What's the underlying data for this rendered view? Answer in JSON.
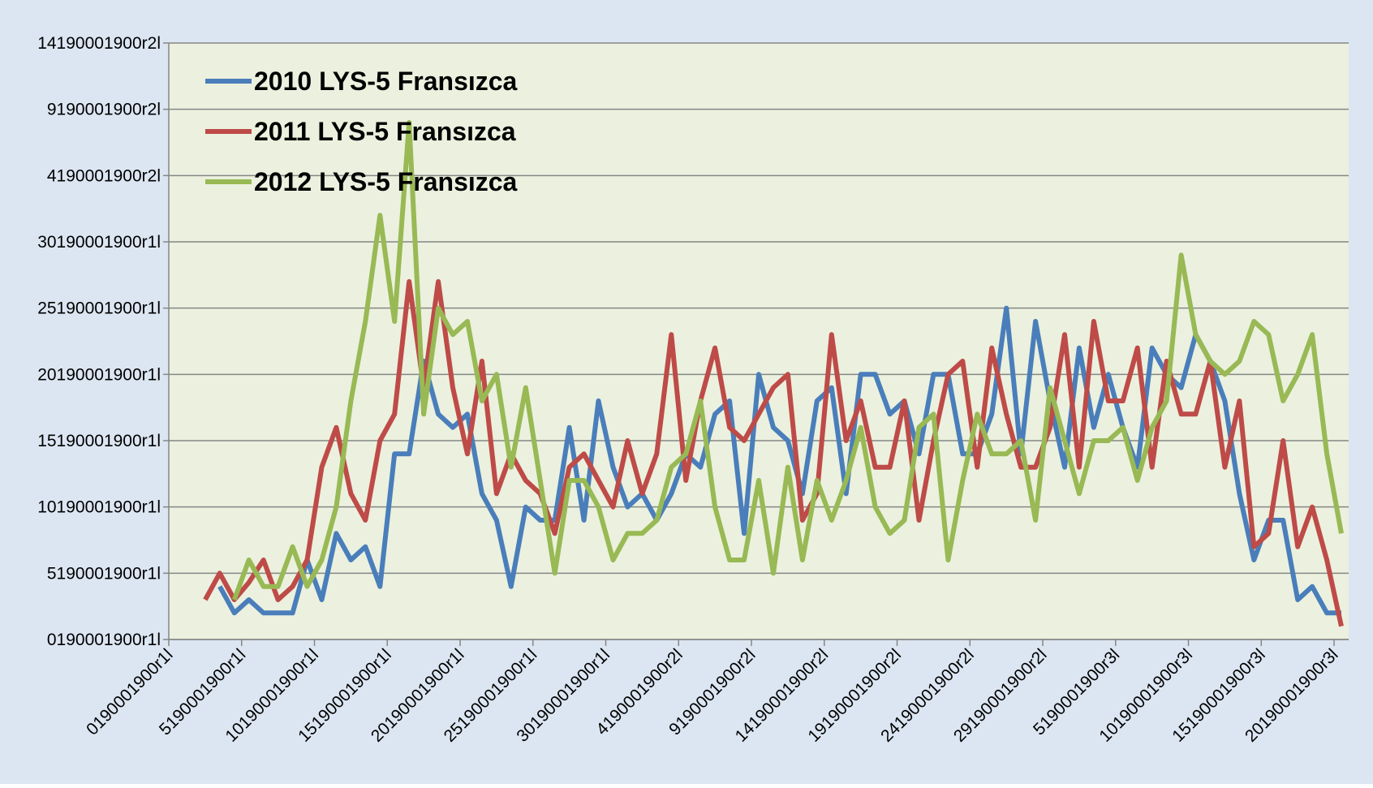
{
  "chart_data": {
    "type": "line",
    "x": [
      2.5,
      3.5,
      4.5,
      5.5,
      6.5,
      7.5,
      8.5,
      9.5,
      10.5,
      11.5,
      12.5,
      13.5,
      14.5,
      15.5,
      16.5,
      17.5,
      18.5,
      19.5,
      20.5,
      21.5,
      22.5,
      23.5,
      24.5,
      25.5,
      26.5,
      27.5,
      28.5,
      29.5,
      30.5,
      31.5,
      32.5,
      33.5,
      34.5,
      35.5,
      36.5,
      37.5,
      38.5,
      39.5,
      40.5,
      41.5,
      42.5,
      43.5,
      44.5,
      45.5,
      46.5,
      47.5,
      48.5,
      49.5,
      50.5,
      51.5,
      52.5,
      53.5,
      54.5,
      55.5,
      56.5,
      57.5,
      58.5,
      59.5,
      60.5,
      61.5,
      62.5,
      63.5,
      64.5,
      65.5,
      66.5,
      67.5,
      68.5,
      69.5,
      70.5,
      71.5,
      72.5,
      73.5,
      74.5,
      75.5,
      76.5,
      77.5,
      78.5,
      79.5,
      80.5
    ],
    "series": [
      {
        "name": "2010 LYS-5 Fransızca",
        "color": "#4a7ebb",
        "values": [
          null,
          4,
          2,
          3,
          2,
          2,
          2,
          6,
          3,
          8,
          6,
          7,
          4,
          14,
          14,
          21,
          17,
          16,
          17,
          11,
          9,
          4,
          10,
          9,
          9,
          16,
          9,
          18,
          13,
          10,
          11,
          9,
          11,
          14,
          13,
          17,
          18,
          8,
          20,
          16,
          15,
          11,
          18,
          19,
          11,
          20,
          20,
          17,
          18,
          14,
          20,
          20,
          14,
          14,
          17,
          25,
          14,
          24,
          18,
          13,
          22,
          16,
          20,
          16,
          13,
          22,
          20,
          19,
          23,
          21,
          18,
          11,
          6,
          9,
          9,
          3,
          4,
          2,
          2
        ]
      },
      {
        "name": "2011 LYS-5 Fransızca",
        "color": "#be4b48",
        "values": [
          3,
          5,
          3,
          4.3,
          6,
          3,
          4,
          6,
          13,
          16,
          11,
          9,
          15,
          17,
          27,
          19,
          27,
          19,
          14,
          21,
          11,
          14,
          12,
          11,
          8,
          13,
          14,
          12,
          10,
          15,
          11,
          14,
          23,
          12,
          18,
          22,
          16,
          15,
          17,
          19,
          20,
          9,
          11,
          23,
          15,
          18,
          13,
          13,
          18,
          9,
          15,
          20,
          21,
          13,
          22,
          17,
          13,
          13,
          16,
          23,
          13,
          24,
          18,
          18,
          22,
          13,
          21,
          17,
          17,
          21,
          13,
          18,
          7,
          8,
          15,
          7,
          10,
          6,
          1
        ]
      },
      {
        "name": "2012 LYS-5 Fransızca",
        "color": "#98b954",
        "values": [
          null,
          null,
          3,
          6,
          4,
          4,
          7,
          4,
          6,
          10,
          18,
          24,
          32,
          24,
          39,
          17,
          25,
          23,
          24,
          18,
          20,
          13,
          19,
          12,
          5,
          12,
          12,
          10,
          6,
          8,
          8,
          9,
          13,
          14,
          18,
          10,
          6,
          6,
          12,
          5,
          13,
          6,
          12,
          9,
          12,
          16,
          10,
          8,
          9,
          16,
          17,
          6,
          12,
          17,
          14,
          14,
          15,
          9,
          19,
          15,
          11,
          15,
          15,
          16,
          12,
          16,
          18,
          29,
          23,
          21,
          20,
          21,
          24,
          23,
          18,
          20,
          23,
          14,
          8
        ]
      }
    ],
    "xlim": [
      0,
      81
    ],
    "xticks": [
      {
        "value": 0,
        "label": "0190001900r1l"
      },
      {
        "value": 5,
        "label": "5190001900r1l"
      },
      {
        "value": 10,
        "label": "10190001900r1l"
      },
      {
        "value": 15,
        "label": "15190001900r1l"
      },
      {
        "value": 20,
        "label": "20190001900r1l"
      },
      {
        "value": 25,
        "label": "25190001900r1l"
      },
      {
        "value": 30,
        "label": "30190001900r1l"
      },
      {
        "value": 35,
        "label": "4190001900r2l"
      },
      {
        "value": 40,
        "label": "9190001900r2l"
      },
      {
        "value": 45,
        "label": "14190001900r2l"
      },
      {
        "value": 50,
        "label": "19190001900r2l"
      },
      {
        "value": 55,
        "label": "24190001900r2l"
      },
      {
        "value": 60,
        "label": "29190001900r2l"
      },
      {
        "value": 65,
        "label": "5190001900r3l"
      },
      {
        "value": 70,
        "label": "10190001900r3l"
      },
      {
        "value": 75,
        "label": "15190001900r3l"
      },
      {
        "value": 80,
        "label": "20190001900r3l"
      }
    ],
    "ylim": [
      0,
      45
    ],
    "yticks": [
      {
        "value": 0,
        "label": "0190001900r1l"
      },
      {
        "value": 5,
        "label": "5190001900r1l"
      },
      {
        "value": 10,
        "label": "10190001900r1l"
      },
      {
        "value": 15,
        "label": "15190001900r1l"
      },
      {
        "value": 20,
        "label": "20190001900r1l"
      },
      {
        "value": 25,
        "label": "25190001900r1l"
      },
      {
        "value": 30,
        "label": "30190001900r1l"
      },
      {
        "value": 35,
        "label": "4190001900r2l"
      },
      {
        "value": 40,
        "label": "9190001900r2l"
      },
      {
        "value": 45,
        "label": "14190001900r2l"
      }
    ],
    "grid": true,
    "legend": "upper-left"
  }
}
